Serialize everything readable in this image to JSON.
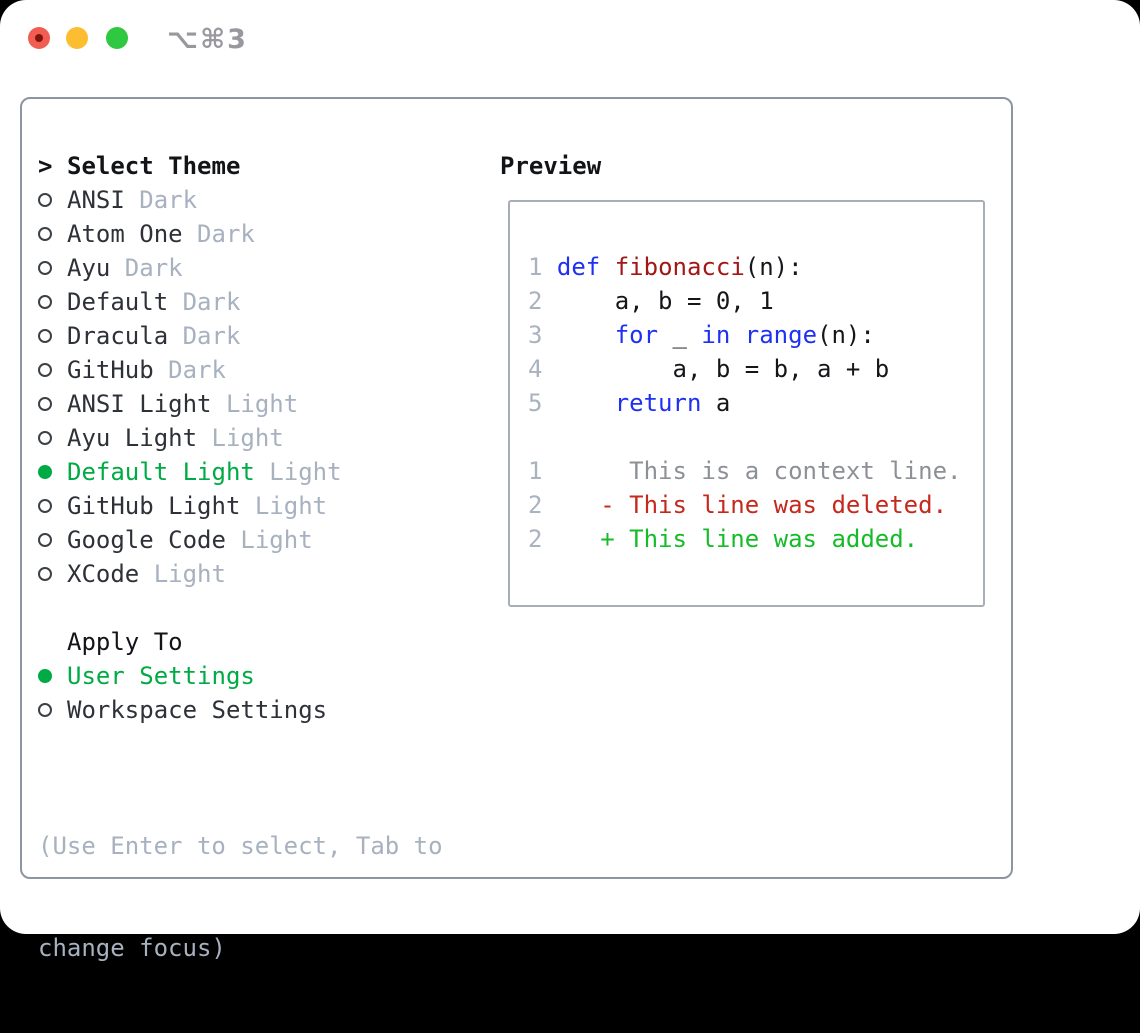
{
  "titlebar": {
    "shortcut": "⌥⌘3"
  },
  "theme_panel": {
    "header_prefix": ">",
    "header": "Select Theme",
    "items": [
      {
        "name": "ANSI",
        "tag": "Dark",
        "selected": false
      },
      {
        "name": "Atom One",
        "tag": "Dark",
        "selected": false
      },
      {
        "name": "Ayu",
        "tag": "Dark",
        "selected": false
      },
      {
        "name": "Default",
        "tag": "Dark",
        "selected": false
      },
      {
        "name": "Dracula",
        "tag": "Dark",
        "selected": false
      },
      {
        "name": "GitHub",
        "tag": "Dark",
        "selected": false
      },
      {
        "name": "ANSI Light",
        "tag": "Light",
        "selected": false
      },
      {
        "name": "Ayu Light",
        "tag": "Light",
        "selected": false
      },
      {
        "name": "Default Light",
        "tag": "Light",
        "selected": true
      },
      {
        "name": "GitHub Light",
        "tag": "Light",
        "selected": false
      },
      {
        "name": "Google Code",
        "tag": "Light",
        "selected": false
      },
      {
        "name": "XCode",
        "tag": "Light",
        "selected": false
      }
    ]
  },
  "apply_panel": {
    "header": "Apply To",
    "options": [
      {
        "name": "User Settings",
        "selected": true
      },
      {
        "name": "Workspace Settings",
        "selected": false
      }
    ]
  },
  "hint": {
    "line1": "(Use Enter to select, Tab to",
    "line2": "change focus)"
  },
  "preview": {
    "title": "Preview",
    "code_lines": [
      {
        "num": "1",
        "tokens": [
          {
            "t": " ",
            "c": "pl"
          },
          {
            "t": "def",
            "c": "kw"
          },
          {
            "t": " ",
            "c": "pl"
          },
          {
            "t": "fibonacci",
            "c": "fn"
          },
          {
            "t": "(n):",
            "c": "pl"
          }
        ]
      },
      {
        "num": "2",
        "tokens": [
          {
            "t": "     a, b = 0, 1",
            "c": "pl"
          }
        ]
      },
      {
        "num": "3",
        "tokens": [
          {
            "t": "     ",
            "c": "pl"
          },
          {
            "t": "for",
            "c": "kw"
          },
          {
            "t": " _ ",
            "c": "pl"
          },
          {
            "t": "in",
            "c": "kw"
          },
          {
            "t": " ",
            "c": "pl"
          },
          {
            "t": "range",
            "c": "kw"
          },
          {
            "t": "(n):",
            "c": "pl"
          }
        ]
      },
      {
        "num": "4",
        "tokens": [
          {
            "t": "         a, b = b, a + b",
            "c": "pl"
          }
        ]
      },
      {
        "num": "5",
        "tokens": [
          {
            "t": "     ",
            "c": "pl"
          },
          {
            "t": "return",
            "c": "kw"
          },
          {
            "t": " a",
            "c": "pl"
          }
        ]
      },
      {
        "num": "",
        "tokens": []
      },
      {
        "num": "1",
        "tokens": [
          {
            "t": "      This is a context line.",
            "c": "ctx"
          }
        ]
      },
      {
        "num": "2",
        "tokens": [
          {
            "t": "    - This line was deleted.",
            "c": "del"
          }
        ]
      },
      {
        "num": "2",
        "tokens": [
          {
            "t": "    + This line was added.",
            "c": "add"
          }
        ]
      }
    ]
  },
  "colors": {
    "selected_green": "#00ab45",
    "keyword_blue": "#1e31f3",
    "function_red": "#a31616",
    "diff_deleted": "#c5281c",
    "diff_added": "#15bc28",
    "muted_gray": "#a7b1bf",
    "traffic_close": "#f25d53",
    "traffic_minimize": "#fcbd30",
    "traffic_zoom": "#2ec841"
  }
}
